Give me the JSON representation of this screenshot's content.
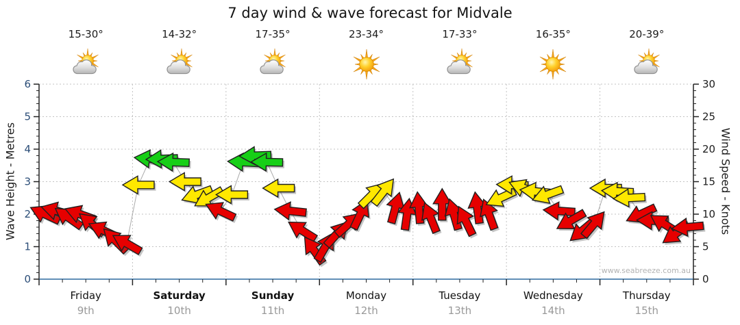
{
  "title": "7 day wind & wave forecast for Midvale",
  "watermark": "www.seabreeze.com.au",
  "days": [
    {
      "name": "Friday",
      "date": "9th",
      "temp": "15-30°",
      "icon": "partly-cloudy",
      "bold": false
    },
    {
      "name": "Saturday",
      "date": "10th",
      "temp": "14-32°",
      "icon": "partly-cloudy",
      "bold": true
    },
    {
      "name": "Sunday",
      "date": "11th",
      "temp": "17-35°",
      "icon": "partly-cloudy",
      "bold": true
    },
    {
      "name": "Monday",
      "date": "12th",
      "temp": "23-34°",
      "icon": "sunny",
      "bold": false
    },
    {
      "name": "Tuesday",
      "date": "13th",
      "temp": "17-33°",
      "icon": "partly-cloudy",
      "bold": false
    },
    {
      "name": "Wednesday",
      "date": "14th",
      "temp": "16-35°",
      "icon": "sunny",
      "bold": false
    },
    {
      "name": "Thursday",
      "date": "15th",
      "temp": "20-39°",
      "icon": "partly-cloudy",
      "bold": false
    }
  ],
  "chart_data": {
    "type": "line",
    "title": "7 day wind & wave forecast for Midvale",
    "ylabel_left": "Wave Height - Metres",
    "ylabel_right": "Wind Speed - Knots",
    "y_left_range": [
      0,
      6
    ],
    "y_right_range": [
      0,
      30
    ],
    "y_left_ticks": [
      0,
      1,
      2,
      3,
      4,
      5,
      6
    ],
    "y_right_ticks": [
      0,
      5,
      10,
      15,
      20,
      25,
      30
    ],
    "x_categories": [
      "Friday 9th",
      "Saturday 10th",
      "Sunday 11th",
      "Monday 12th",
      "Tuesday 13th",
      "Wednesday 14th",
      "Thursday 15th"
    ],
    "grid": true,
    "legend": false,
    "points_per_day": 8,
    "scale_note": "arrow vertical position reads both axes: wave metres (left) = wind knots (right) / 5",
    "dir_convention": "arrow pointing direction on screen, degrees clockwise: 0=right/E, 90=down/S, 180=left/W, 270=up/N",
    "colors": {
      "red": "#e60000",
      "yellow": "#ffe800",
      "green": "#17cf17",
      "outline": "#1f1f1f",
      "axis_bottom": "#2d6a9f",
      "axis_side": "#222222",
      "grid": "#c3c3c3",
      "connector": "#aaaaaa",
      "left_tick_text": "#2b4d77",
      "right_tick_text": "#1c1c1c",
      "date_text": "#999999",
      "watermark_text": "#b3b3b3"
    },
    "series": [
      {
        "day": "Friday",
        "speeds_kn": [
          10,
          10.5,
          9.5,
          10,
          8.5,
          7.5,
          6,
          5.5
        ],
        "wave_m": [
          2,
          2.1,
          1.9,
          2,
          1.7,
          1.5,
          1.2,
          1.1
        ],
        "dirs_deg": [
          205,
          195,
          215,
          200,
          220,
          205,
          225,
          210
        ],
        "colors": [
          "red",
          "red",
          "red",
          "red",
          "red",
          "red",
          "red",
          "red"
        ]
      },
      {
        "day": "Saturday",
        "speeds_kn": [
          14.5,
          18.5,
          18.5,
          18,
          15,
          13,
          12.5,
          10.5
        ],
        "wave_m": [
          2.9,
          3.7,
          3.7,
          3.6,
          3,
          2.6,
          2.5,
          2.1
        ],
        "dirs_deg": [
          180,
          185,
          178,
          182,
          180,
          160,
          150,
          205
        ],
        "colors": [
          "yellow",
          "green",
          "green",
          "green",
          "yellow",
          "yellow",
          "yellow",
          "red"
        ]
      },
      {
        "day": "Sunday",
        "speeds_kn": [
          13,
          18,
          19,
          18,
          14,
          10.5,
          7.5,
          4.5
        ],
        "wave_m": [
          2.6,
          3.6,
          3.8,
          3.6,
          2.8,
          2.1,
          1.5,
          0.9
        ],
        "dirs_deg": [
          180,
          183,
          178,
          181,
          180,
          186,
          212,
          235
        ],
        "colors": [
          "yellow",
          "green",
          "green",
          "green",
          "yellow",
          "red",
          "red",
          "red"
        ]
      },
      {
        "day": "Monday",
        "speeds_kn": [
          5,
          7,
          8.5,
          10,
          13,
          13.5,
          11,
          10
        ],
        "wave_m": [
          1,
          1.4,
          1.7,
          2,
          2.6,
          2.7,
          2.2,
          2
        ],
        "dirs_deg": [
          300,
          312,
          318,
          295,
          315,
          308,
          285,
          278
        ],
        "colors": [
          "red",
          "red",
          "red",
          "red",
          "yellow",
          "yellow",
          "red",
          "red"
        ]
      },
      {
        "day": "Tuesday",
        "speeds_kn": [
          11,
          9.5,
          11.5,
          10,
          9,
          11,
          10,
          12.5
        ],
        "wave_m": [
          2.2,
          1.9,
          2.3,
          2,
          1.8,
          2.2,
          2,
          2.5
        ],
        "dirs_deg": [
          265,
          248,
          270,
          254,
          244,
          262,
          250,
          155
        ],
        "colors": [
          "red",
          "red",
          "red",
          "red",
          "red",
          "red",
          "red",
          "yellow"
        ]
      },
      {
        "day": "Wednesday",
        "speeds_kn": [
          14.5,
          14,
          13.5,
          13,
          10.5,
          9,
          7.5,
          8.5
        ],
        "wave_m": [
          2.9,
          2.8,
          2.7,
          2.6,
          2.1,
          1.8,
          1.5,
          1.7
        ],
        "dirs_deg": [
          182,
          202,
          186,
          160,
          184,
          150,
          140,
          310
        ],
        "colors": [
          "yellow",
          "yellow",
          "yellow",
          "yellow",
          "red",
          "red",
          "red",
          "red"
        ]
      },
      {
        "day": "Thursday",
        "speeds_kn": [
          14,
          13.5,
          12.5,
          10,
          9,
          8.5,
          7,
          8
        ],
        "wave_m": [
          2.8,
          2.7,
          2.5,
          2,
          1.8,
          1.7,
          1.4,
          1.6
        ],
        "dirs_deg": [
          180,
          183,
          177,
          155,
          182,
          212,
          145,
          175
        ],
        "colors": [
          "yellow",
          "yellow",
          "yellow",
          "red",
          "red",
          "red",
          "red",
          "red"
        ]
      }
    ]
  }
}
